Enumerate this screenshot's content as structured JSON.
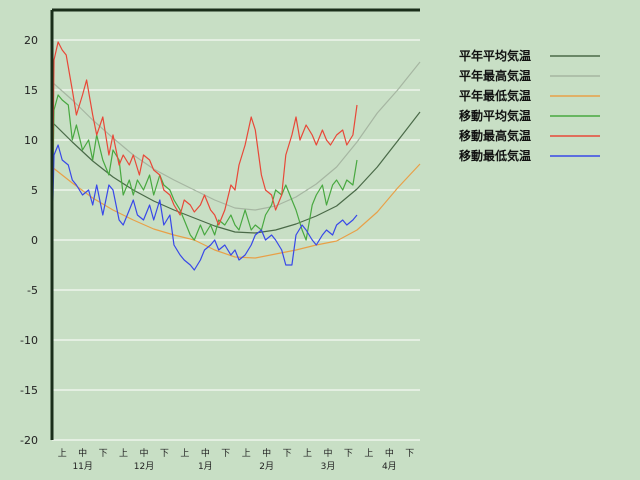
{
  "chart_data": {
    "type": "line",
    "ylim": [
      -20,
      23
    ],
    "yticks": [
      20,
      15,
      10,
      5,
      0,
      -5,
      -10,
      -15,
      -20
    ],
    "grid": true,
    "legend_position": "top-right",
    "x_decade_labels": [
      "上",
      "中",
      "下",
      "上",
      "中",
      "下",
      "上",
      "中",
      "下",
      "上",
      "中",
      "下",
      "上",
      "中",
      "下",
      "上",
      "中",
      "下"
    ],
    "x_month_labels": [
      "11月",
      "12月",
      "1月",
      "2月",
      "3月",
      "4月"
    ],
    "x_day_range": [
      0,
      181
    ],
    "series": [
      {
        "name": "平年平均気温",
        "color": "#4a6a48",
        "x": [
          0,
          10,
          20,
          30,
          40,
          50,
          60,
          70,
          80,
          90,
          100,
          110,
          120,
          130,
          140,
          150,
          160,
          170,
          181
        ],
        "y": [
          11.8,
          9.8,
          7.9,
          6.3,
          5.0,
          3.9,
          3.0,
          2.2,
          1.4,
          0.8,
          0.7,
          1.0,
          1.6,
          2.4,
          3.4,
          5.1,
          7.3,
          9.9,
          12.8
        ]
      },
      {
        "name": "平年最高気温",
        "color": "#a6b6a2",
        "x": [
          0,
          10,
          20,
          30,
          40,
          50,
          60,
          70,
          80,
          90,
          100,
          110,
          120,
          130,
          140,
          150,
          160,
          170,
          181
        ],
        "y": [
          15.8,
          14.0,
          12.0,
          10.2,
          8.5,
          7.1,
          6.0,
          5.0,
          4.0,
          3.2,
          3.0,
          3.4,
          4.3,
          5.6,
          7.3,
          9.8,
          12.7,
          15.0,
          17.8
        ]
      },
      {
        "name": "平年最低気温",
        "color": "#e8a048",
        "x": [
          0,
          10,
          20,
          30,
          40,
          50,
          60,
          70,
          80,
          90,
          100,
          110,
          120,
          130,
          140,
          150,
          160,
          170,
          181
        ],
        "y": [
          7.3,
          5.7,
          4.2,
          3.0,
          2.0,
          1.1,
          0.5,
          0.0,
          -1.0,
          -1.7,
          -1.8,
          -1.4,
          -1.0,
          -0.5,
          -0.1,
          1.0,
          2.8,
          5.2,
          7.6
        ]
      },
      {
        "name": "移動平均気温",
        "color": "#48a840",
        "x": [
          0,
          1,
          3,
          5,
          8,
          10,
          12,
          15,
          18,
          20,
          22,
          25,
          28,
          30,
          33,
          35,
          38,
          40,
          42,
          45,
          48,
          50,
          53,
          55,
          58,
          60,
          63,
          65,
          68,
          70,
          73,
          75,
          78,
          80,
          82,
          85,
          88,
          90,
          92,
          95,
          98,
          100,
          103,
          105,
          108,
          110,
          113,
          115,
          118,
          120,
          123,
          125,
          128,
          130,
          133,
          135,
          138,
          140,
          143,
          145,
          148,
          150
        ],
        "y": [
          0,
          13.0,
          14.5,
          14.0,
          13.5,
          10.0,
          11.5,
          9.0,
          10.0,
          8.0,
          10.5,
          8.0,
          6.5,
          9.0,
          8.0,
          4.5,
          6.0,
          4.5,
          6.0,
          5.0,
          6.5,
          4.5,
          6.5,
          5.5,
          5.0,
          4.0,
          3.0,
          2.0,
          0.5,
          0.0,
          1.5,
          0.5,
          1.5,
          0.5,
          2.0,
          1.5,
          2.5,
          1.5,
          1.0,
          3.0,
          1.0,
          1.5,
          1.0,
          2.5,
          3.5,
          5.0,
          4.5,
          5.5,
          4.0,
          3.0,
          1.0,
          0.0,
          3.5,
          4.5,
          5.5,
          3.5,
          5.5,
          6.0,
          5.0,
          6.0,
          5.5,
          8.0
        ]
      },
      {
        "name": "移動最高気温",
        "color": "#e84838",
        "x": [
          0,
          1,
          3,
          5,
          7,
          10,
          12,
          15,
          17,
          20,
          22,
          25,
          28,
          30,
          33,
          35,
          38,
          40,
          43,
          45,
          48,
          50,
          53,
          55,
          58,
          60,
          63,
          65,
          68,
          70,
          73,
          75,
          78,
          80,
          82,
          85,
          88,
          90,
          92,
          95,
          98,
          100,
          103,
          105,
          108,
          110,
          113,
          115,
          118,
          120,
          122,
          125,
          128,
          130,
          133,
          135,
          137,
          140,
          143,
          145,
          148,
          150
        ],
        "y": [
          0,
          18.0,
          19.8,
          19.0,
          18.5,
          15.0,
          12.5,
          14.5,
          16.0,
          12.5,
          10.5,
          12.3,
          8.5,
          10.5,
          7.5,
          8.5,
          7.5,
          8.5,
          6.5,
          8.5,
          8.0,
          7.0,
          6.5,
          5.0,
          4.5,
          3.5,
          2.5,
          4.0,
          3.5,
          2.8,
          3.5,
          4.5,
          3.0,
          2.5,
          1.5,
          3.0,
          5.5,
          5.0,
          7.5,
          9.5,
          12.3,
          11.0,
          6.5,
          5.0,
          4.5,
          3.0,
          4.5,
          8.5,
          10.5,
          12.3,
          10.0,
          11.5,
          10.5,
          9.5,
          11.0,
          10.0,
          9.5,
          10.5,
          11.0,
          9.5,
          10.5,
          13.5
        ]
      },
      {
        "name": "移動最低気温",
        "color": "#3848e8",
        "x": [
          0,
          1,
          3,
          5,
          8,
          10,
          12,
          15,
          18,
          20,
          22,
          25,
          28,
          30,
          33,
          35,
          38,
          40,
          42,
          45,
          48,
          50,
          53,
          55,
          58,
          60,
          63,
          65,
          68,
          70,
          73,
          75,
          78,
          80,
          82,
          85,
          88,
          90,
          92,
          95,
          98,
          100,
          103,
          105,
          108,
          110,
          113,
          115,
          118,
          120,
          123,
          125,
          128,
          130,
          133,
          135,
          138,
          140,
          143,
          145,
          148,
          150
        ],
        "y": [
          0,
          8.5,
          9.5,
          8.0,
          7.5,
          6.0,
          5.5,
          4.5,
          5.0,
          3.5,
          5.5,
          2.5,
          5.5,
          5.0,
          2.0,
          1.5,
          3.0,
          4.0,
          2.5,
          2.0,
          3.5,
          2.0,
          4.0,
          1.5,
          2.5,
          -0.5,
          -1.5,
          -2.0,
          -2.5,
          -3.0,
          -2.0,
          -1.0,
          -0.5,
          0.0,
          -1.0,
          -0.5,
          -1.5,
          -1.0,
          -2.0,
          -1.5,
          -0.5,
          0.5,
          1.0,
          0.0,
          0.5,
          0.0,
          -1.0,
          -2.5,
          -2.5,
          0.5,
          1.5,
          1.0,
          0.0,
          -0.5,
          0.5,
          1.0,
          0.5,
          1.5,
          2.0,
          1.5,
          2.0,
          2.5
        ]
      }
    ]
  }
}
